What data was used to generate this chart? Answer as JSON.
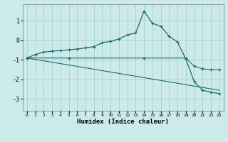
{
  "xlabel": "Humidex (Indice chaleur)",
  "background_color": "#cceaea",
  "grid_color": "#aad4d4",
  "line_color": "#1a6b6b",
  "xlim": [
    -0.5,
    23.5
  ],
  "ylim": [
    -3.6,
    1.85
  ],
  "yticks": [
    -3,
    -2,
    -1,
    0,
    1
  ],
  "xticks": [
    0,
    1,
    2,
    3,
    4,
    5,
    6,
    7,
    8,
    9,
    10,
    11,
    12,
    13,
    14,
    15,
    16,
    17,
    18,
    19,
    20,
    21,
    22,
    23
  ],
  "line1_x": [
    0,
    1,
    2,
    3,
    4,
    5,
    6,
    7,
    8,
    9,
    10,
    11,
    12,
    13,
    14,
    15,
    16,
    17,
    18,
    19,
    20,
    21,
    22,
    23
  ],
  "line1_y": [
    -0.9,
    -0.72,
    -0.6,
    -0.55,
    -0.52,
    -0.48,
    -0.44,
    -0.38,
    -0.32,
    -0.12,
    -0.05,
    0.08,
    0.28,
    0.38,
    1.5,
    0.88,
    0.72,
    0.22,
    -0.08,
    -0.95,
    -2.1,
    -2.55,
    -2.65,
    -2.72
  ],
  "line2_x": [
    0,
    5,
    14,
    19,
    20,
    21,
    22,
    23
  ],
  "line2_y": [
    -0.9,
    -0.9,
    -0.9,
    -0.9,
    -1.32,
    -1.45,
    -1.5,
    -1.5
  ],
  "line3_x": [
    0,
    23
  ],
  "line3_y": [
    -0.9,
    -2.55
  ]
}
